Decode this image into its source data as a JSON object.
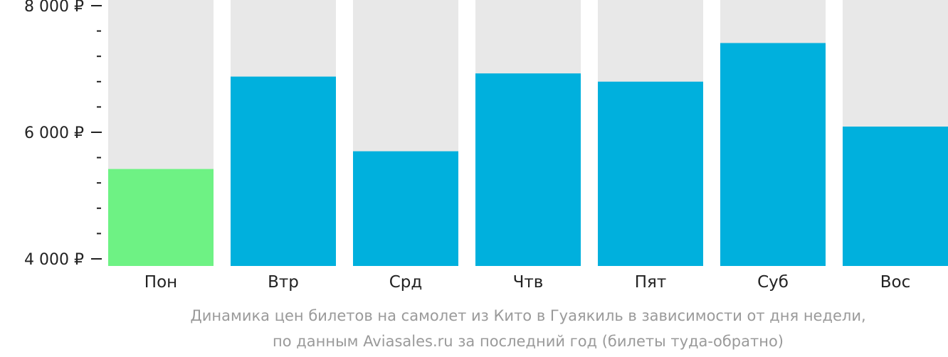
{
  "chart_data": {
    "type": "bar",
    "categories": [
      "Пон",
      "Втр",
      "Срд",
      "Чтв",
      "Пят",
      "Суб",
      "Вос"
    ],
    "values": [
      5420,
      6880,
      5700,
      6930,
      6800,
      7410,
      6090
    ],
    "highlight_index": 0,
    "ylim": [
      4000,
      8000
    ],
    "y_ticks": [
      {
        "value": 4000,
        "label": "4 000 ₽"
      },
      {
        "value": 6000,
        "label": "6 000 ₽"
      },
      {
        "value": 8000,
        "label": "8 000 ₽"
      }
    ],
    "minor_tick_step": 400,
    "grid": false,
    "colors": {
      "bar": "#00b0dd",
      "highlight": "#6ef284",
      "bar_background": "#e8e8e8",
      "axis": "#222222"
    }
  },
  "caption": {
    "line1": "Динамика цен билетов на самолет из Кито в Гуаякиль в зависимости от дня недели,",
    "line2": "по данным Aviasales.ru за последний год (билеты туда-обратно)"
  }
}
